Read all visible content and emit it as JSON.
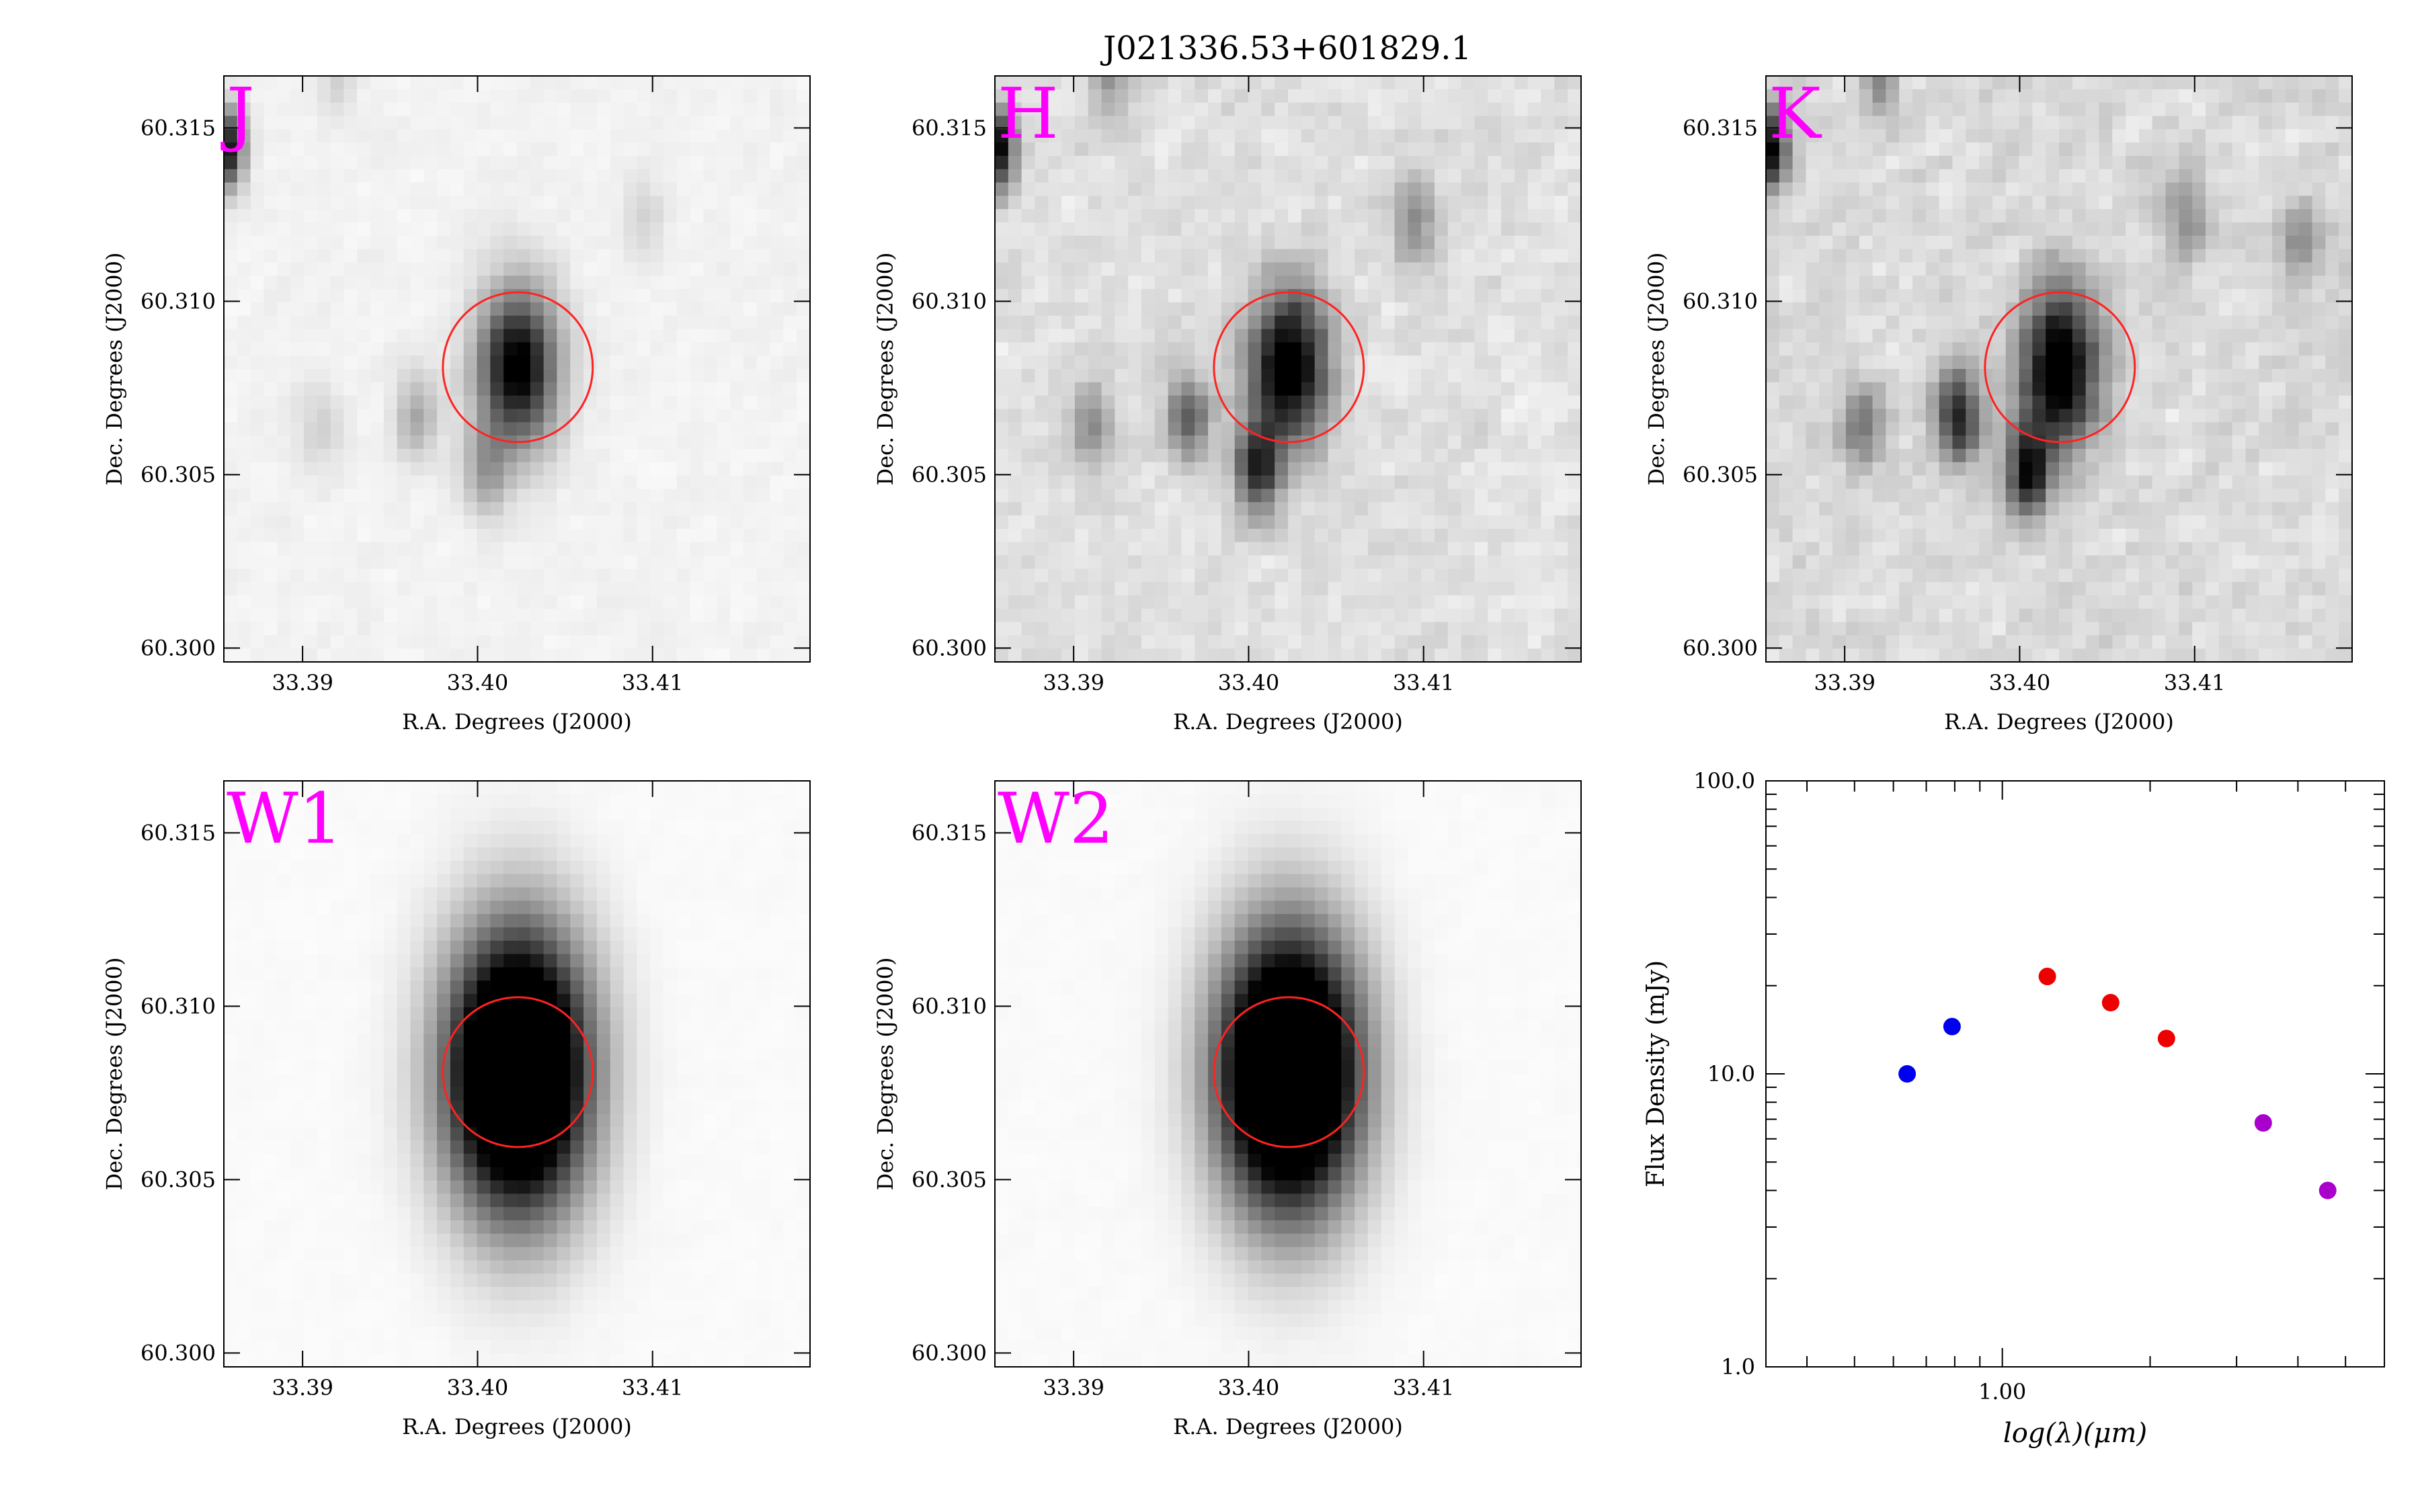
{
  "figure": {
    "title": "J021336.53+601829.1"
  },
  "chart_data": [
    {
      "type": "heatmap",
      "band": "J",
      "xlabel": "R.A. Degrees (J2000)",
      "ylabel": "Dec. Degrees (J2000)",
      "xlim": [
        33.3855,
        33.419
      ],
      "ylim": [
        60.2996,
        60.3165
      ],
      "xticks": [
        "33.39",
        "33.40",
        "33.41"
      ],
      "yticks": [
        "60.300",
        "60.305",
        "60.310",
        "60.315"
      ],
      "background": 0.05,
      "sources": [
        {
          "ra": 33.4023,
          "dec": 60.3081,
          "amp": 1.0,
          "sigma": 0.0016
        },
        {
          "ra": 33.3855,
          "dec": 60.3144,
          "amp": 0.95,
          "sigma": 0.0008
        },
        {
          "ra": 33.3965,
          "dec": 60.3067,
          "amp": 0.28,
          "sigma": 0.0009
        },
        {
          "ra": 33.4005,
          "dec": 60.3051,
          "amp": 0.32,
          "sigma": 0.0009
        },
        {
          "ra": 33.391,
          "dec": 60.3064,
          "amp": 0.14,
          "sigma": 0.0009
        },
        {
          "ra": 33.4095,
          "dec": 60.3125,
          "amp": 0.12,
          "sigma": 0.0009
        },
        {
          "ra": 33.392,
          "dec": 60.3164,
          "amp": 0.12,
          "sigma": 0.0008
        }
      ],
      "circle": {
        "ra": 33.4023,
        "dec": 60.3081,
        "radius_arcdeg": 0.0016
      },
      "noise": 0.06
    },
    {
      "type": "heatmap",
      "band": "H",
      "xlabel": "R.A. Degrees (J2000)",
      "ylabel": "Dec. Degrees (J2000)",
      "xlim": [
        33.3855,
        33.419
      ],
      "ylim": [
        60.2996,
        60.3165
      ],
      "xticks": [
        "33.39",
        "33.40",
        "33.41"
      ],
      "yticks": [
        "60.300",
        "60.305",
        "60.310",
        "60.315"
      ],
      "background": 0.12,
      "sources": [
        {
          "ra": 33.4023,
          "dec": 60.3081,
          "amp": 1.0,
          "sigma": 0.0016
        },
        {
          "ra": 33.3855,
          "dec": 60.3144,
          "amp": 0.95,
          "sigma": 0.0008
        },
        {
          "ra": 33.3965,
          "dec": 60.3067,
          "amp": 0.55,
          "sigma": 0.0009
        },
        {
          "ra": 33.4005,
          "dec": 60.3051,
          "amp": 0.7,
          "sigma": 0.0009
        },
        {
          "ra": 33.391,
          "dec": 60.3064,
          "amp": 0.3,
          "sigma": 0.0009
        },
        {
          "ra": 33.4095,
          "dec": 60.3123,
          "amp": 0.35,
          "sigma": 0.0009
        },
        {
          "ra": 33.392,
          "dec": 60.3164,
          "amp": 0.3,
          "sigma": 0.0008
        }
      ],
      "circle": {
        "ra": 33.4023,
        "dec": 60.3081,
        "radius_arcdeg": 0.0016
      },
      "noise": 0.16
    },
    {
      "type": "heatmap",
      "band": "K",
      "xlabel": "R.A. Degrees (J2000)",
      "ylabel": "Dec. Degrees (J2000)",
      "xlim": [
        33.3855,
        33.419
      ],
      "ylim": [
        60.2996,
        60.3165
      ],
      "xticks": [
        "33.39",
        "33.40",
        "33.41"
      ],
      "yticks": [
        "60.300",
        "60.305",
        "60.310",
        "60.315"
      ],
      "background": 0.14,
      "sources": [
        {
          "ra": 33.4023,
          "dec": 60.3081,
          "amp": 1.0,
          "sigma": 0.0016
        },
        {
          "ra": 33.3855,
          "dec": 60.3144,
          "amp": 0.95,
          "sigma": 0.0008
        },
        {
          "ra": 33.3965,
          "dec": 60.3067,
          "amp": 0.75,
          "sigma": 0.0009
        },
        {
          "ra": 33.4005,
          "dec": 60.3051,
          "amp": 0.8,
          "sigma": 0.0009
        },
        {
          "ra": 33.391,
          "dec": 60.3064,
          "amp": 0.38,
          "sigma": 0.0009
        },
        {
          "ra": 33.4095,
          "dec": 60.3125,
          "amp": 0.3,
          "sigma": 0.0009
        },
        {
          "ra": 33.416,
          "dec": 60.3118,
          "amp": 0.3,
          "sigma": 0.0009
        },
        {
          "ra": 33.392,
          "dec": 60.3164,
          "amp": 0.3,
          "sigma": 0.0008
        }
      ],
      "circle": {
        "ra": 33.4023,
        "dec": 60.3081,
        "radius_arcdeg": 0.0016
      },
      "noise": 0.18
    },
    {
      "type": "heatmap",
      "band": "W1",
      "xlabel": "R.A. Degrees (J2000)",
      "ylabel": "Dec. Degrees (J2000)",
      "xlim": [
        33.3855,
        33.419
      ],
      "ylim": [
        60.2996,
        60.3165
      ],
      "xticks": [
        "33.39",
        "33.40",
        "33.41"
      ],
      "yticks": [
        "60.300",
        "60.305",
        "60.310",
        "60.315"
      ],
      "background": 0.02,
      "sources": [
        {
          "ra": 33.4023,
          "dec": 60.3081,
          "amp": 1.8,
          "sigma": 0.0028
        }
      ],
      "circle": {
        "ra": 33.4023,
        "dec": 60.3081,
        "radius_arcdeg": 0.0016
      },
      "noise": 0.02
    },
    {
      "type": "heatmap",
      "band": "W2",
      "xlabel": "R.A. Degrees (J2000)",
      "ylabel": "Dec. Degrees (J2000)",
      "xlim": [
        33.3855,
        33.419
      ],
      "ylim": [
        60.2996,
        60.3165
      ],
      "xticks": [
        "33.39",
        "33.40",
        "33.41"
      ],
      "yticks": [
        "60.300",
        "60.305",
        "60.310",
        "60.315"
      ],
      "background": 0.02,
      "sources": [
        {
          "ra": 33.4023,
          "dec": 60.3081,
          "amp": 1.8,
          "sigma": 0.0028
        }
      ],
      "circle": {
        "ra": 33.4023,
        "dec": 60.3081,
        "radius_arcdeg": 0.0016
      },
      "noise": 0.02
    },
    {
      "type": "scatter",
      "xlabel": "log(λ)(μm)",
      "ylabel": "Flux Density (mJy)",
      "xscale": "log",
      "yscale": "log",
      "xlim": [
        0.33,
        6.0
      ],
      "ylim": [
        1.0,
        100.0
      ],
      "xticks": [
        "1.00"
      ],
      "yticks": [
        "1.0",
        "10.0",
        "100.0"
      ],
      "series": [
        {
          "color": "#0000ee",
          "points": [
            {
              "x": 0.64,
              "y": 10.0
            },
            {
              "x": 0.79,
              "y": 14.5
            }
          ]
        },
        {
          "color": "#ee0000",
          "points": [
            {
              "x": 1.235,
              "y": 21.5
            },
            {
              "x": 1.662,
              "y": 17.5
            },
            {
              "x": 2.159,
              "y": 13.2
            }
          ]
        },
        {
          "color": "#aa00cc",
          "points": [
            {
              "x": 3.4,
              "y": 6.8
            },
            {
              "x": 4.6,
              "y": 4.0
            }
          ]
        }
      ]
    }
  ]
}
